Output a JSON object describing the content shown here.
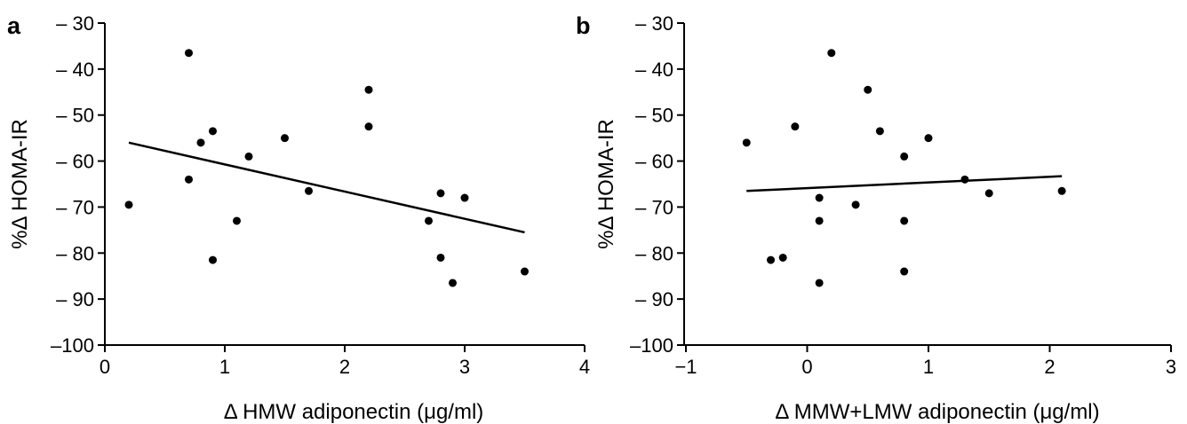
{
  "chart_data": [
    {
      "type": "scatter",
      "panel_label": "a",
      "xlabel": "Δ HMW  adiponectin (μg/ml)",
      "ylabel": "%Δ HOMA-IR",
      "xlim": [
        0,
        4
      ],
      "ylim": [
        -100,
        -30
      ],
      "xticks": [
        0,
        1,
        2,
        3,
        4
      ],
      "xtick_labels": [
        "0",
        "1",
        "2",
        "3",
        "4"
      ],
      "yticks": [
        -30,
        -40,
        -50,
        -60,
        -70,
        -80,
        -90,
        -100
      ],
      "ytick_labels": [
        "– 30",
        "– 40",
        "– 50",
        "– 60",
        "– 70",
        "– 80",
        "– 90",
        "–100"
      ],
      "grid": false,
      "points": [
        {
          "x": 0.2,
          "y": -69.5
        },
        {
          "x": 0.7,
          "y": -36.5
        },
        {
          "x": 0.7,
          "y": -64
        },
        {
          "x": 0.8,
          "y": -56
        },
        {
          "x": 0.9,
          "y": -53.5
        },
        {
          "x": 0.9,
          "y": -81.5
        },
        {
          "x": 1.1,
          "y": -73
        },
        {
          "x": 1.2,
          "y": -59
        },
        {
          "x": 1.5,
          "y": -55
        },
        {
          "x": 1.7,
          "y": -66.5
        },
        {
          "x": 2.2,
          "y": -44.5
        },
        {
          "x": 2.2,
          "y": -52.5
        },
        {
          "x": 2.7,
          "y": -73
        },
        {
          "x": 2.8,
          "y": -67
        },
        {
          "x": 2.8,
          "y": -81
        },
        {
          "x": 2.9,
          "y": -86.5
        },
        {
          "x": 3.0,
          "y": -68
        },
        {
          "x": 3.5,
          "y": -84
        }
      ],
      "fit_line": {
        "x": [
          0.2,
          3.5
        ],
        "y": [
          -56,
          -75.5
        ]
      }
    },
    {
      "type": "scatter",
      "panel_label": "b",
      "xlabel": "Δ MMW+LMW  adiponectin (μg/ml)",
      "ylabel": "%Δ HOMA-IR",
      "xlim": [
        -1,
        3
      ],
      "ylim": [
        -100,
        -30
      ],
      "xticks": [
        -1,
        0,
        1,
        2,
        3
      ],
      "xtick_labels": [
        "−1",
        "0",
        "1",
        "2",
        "3"
      ],
      "yticks": [
        -30,
        -40,
        -50,
        -60,
        -70,
        -80,
        -90,
        -100
      ],
      "ytick_labels": [
        "– 30",
        "– 40",
        "– 50",
        "– 60",
        "– 70",
        "– 80",
        "– 90",
        "–100"
      ],
      "grid": false,
      "points": [
        {
          "x": -0.5,
          "y": -56
        },
        {
          "x": -0.3,
          "y": -81.5
        },
        {
          "x": -0.2,
          "y": -81
        },
        {
          "x": -0.1,
          "y": -52.5
        },
        {
          "x": 0.1,
          "y": -68
        },
        {
          "x": 0.1,
          "y": -73
        },
        {
          "x": 0.1,
          "y": -86.5
        },
        {
          "x": 0.2,
          "y": -36.5
        },
        {
          "x": 0.4,
          "y": -69.5
        },
        {
          "x": 0.5,
          "y": -44.5
        },
        {
          "x": 0.6,
          "y": -53.5
        },
        {
          "x": 0.8,
          "y": -59
        },
        {
          "x": 0.8,
          "y": -73
        },
        {
          "x": 0.8,
          "y": -84
        },
        {
          "x": 1.0,
          "y": -55
        },
        {
          "x": 1.3,
          "y": -64
        },
        {
          "x": 1.5,
          "y": -67
        },
        {
          "x": 2.1,
          "y": -66.5
        }
      ],
      "fit_line": {
        "x": [
          -0.5,
          2.1
        ],
        "y": [
          -66.5,
          -63.3
        ]
      }
    }
  ]
}
